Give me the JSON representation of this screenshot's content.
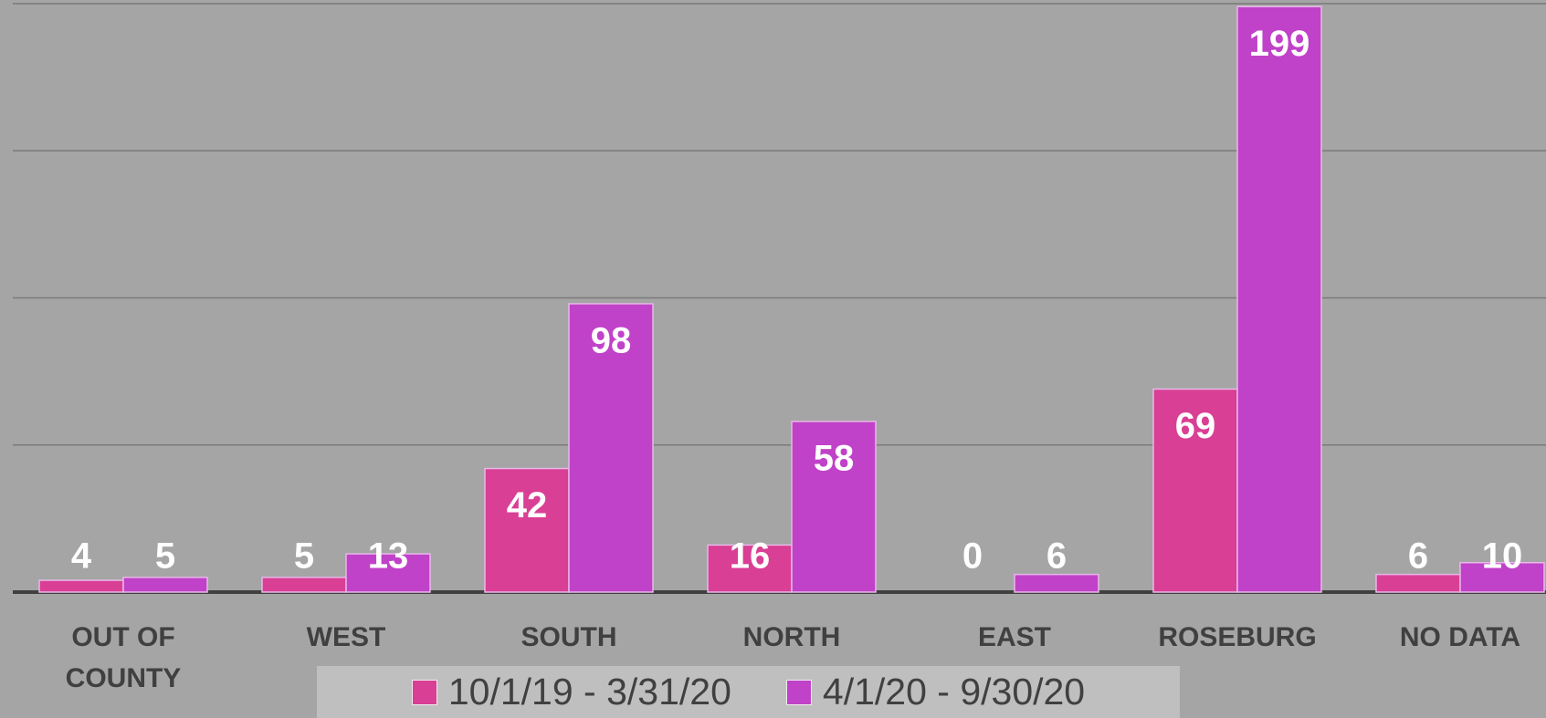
{
  "chart_data": {
    "type": "bar",
    "categories": [
      "OUT OF COUNTY",
      "WEST",
      "SOUTH",
      "NORTH",
      "EAST",
      "ROSEBURG",
      "NO DATA"
    ],
    "series": [
      {
        "name": "10/1/19 - 3/31/20",
        "color": "#d93f94",
        "values": [
          4,
          5,
          42,
          16,
          0,
          69,
          6
        ]
      },
      {
        "name": "4/1/20 - 9/30/20",
        "color": "#c042c8",
        "values": [
          5,
          13,
          98,
          58,
          6,
          199,
          10
        ]
      }
    ],
    "ylim": [
      0,
      200
    ],
    "yticks": [
      0,
      50,
      100,
      150,
      200
    ],
    "grid": true
  }
}
